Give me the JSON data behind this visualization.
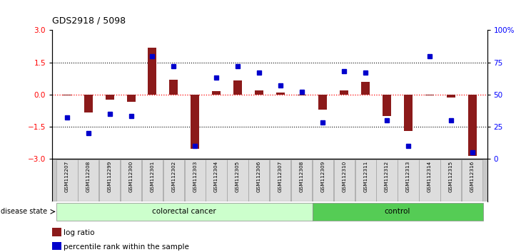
{
  "title": "GDS2918 / 5098",
  "samples": [
    "GSM112207",
    "GSM112208",
    "GSM112299",
    "GSM112300",
    "GSM112301",
    "GSM112302",
    "GSM112303",
    "GSM112304",
    "GSM112305",
    "GSM112306",
    "GSM112307",
    "GSM112308",
    "GSM112309",
    "GSM112310",
    "GSM112311",
    "GSM112312",
    "GSM112313",
    "GSM112314",
    "GSM112315",
    "GSM112316"
  ],
  "log_ratio": [
    -0.05,
    -0.85,
    -0.25,
    -0.35,
    2.2,
    0.7,
    -2.55,
    0.15,
    0.65,
    0.2,
    0.1,
    -0.05,
    -0.7,
    0.2,
    0.6,
    -1.0,
    -1.7,
    -0.05,
    -0.15,
    -2.85
  ],
  "percentile": [
    32,
    20,
    35,
    33,
    80,
    72,
    10,
    63,
    72,
    67,
    57,
    52,
    28,
    68,
    67,
    30,
    10,
    80,
    30,
    5
  ],
  "bar_color": "#8B1A1A",
  "dot_color": "#0000CC",
  "colorectal_count": 12,
  "control_count": 8,
  "colorectal_color": "#CCFFCC",
  "control_color": "#55CC55",
  "ylim": [
    -3,
    3
  ],
  "y2lim": [
    0,
    100
  ],
  "yticks": [
    -3,
    -1.5,
    0,
    1.5,
    3
  ],
  "y2ticks": [
    0,
    25,
    50,
    75,
    100
  ],
  "bg_color": "#FFFFFF",
  "plot_bg": "#FFFFFF",
  "tick_label_area_color": "#C8C8C8"
}
